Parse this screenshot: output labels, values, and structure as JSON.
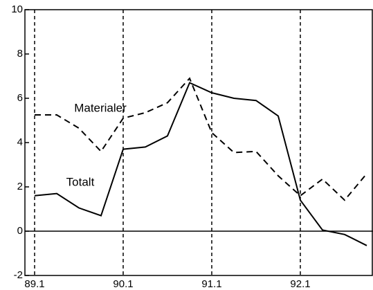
{
  "chart_data": {
    "type": "line",
    "categories": [
      "89.1",
      null,
      null,
      null,
      "90.1",
      null,
      null,
      null,
      "91.1",
      null,
      null,
      null,
      "92.1",
      null,
      null,
      null
    ],
    "series": [
      {
        "name": "Materialer",
        "color": "#000000",
        "dash": true,
        "values": [
          5.25,
          5.25,
          4.65,
          3.6,
          5.1,
          5.35,
          5.8,
          6.9,
          4.45,
          3.55,
          3.6,
          2.5,
          1.6,
          2.35,
          1.4,
          2.6
        ]
      },
      {
        "name": "Totalt",
        "color": "#000000",
        "dash": false,
        "values": [
          1.6,
          1.7,
          1.05,
          0.7,
          3.7,
          3.8,
          4.3,
          6.7,
          6.25,
          6.0,
          5.9,
          5.2,
          1.4,
          0.05,
          -0.15,
          -0.65
        ]
      }
    ],
    "ylim": [
      -2,
      10
    ],
    "yticks": [
      -2,
      0,
      2,
      4,
      6,
      8,
      10
    ],
    "grid": true
  }
}
